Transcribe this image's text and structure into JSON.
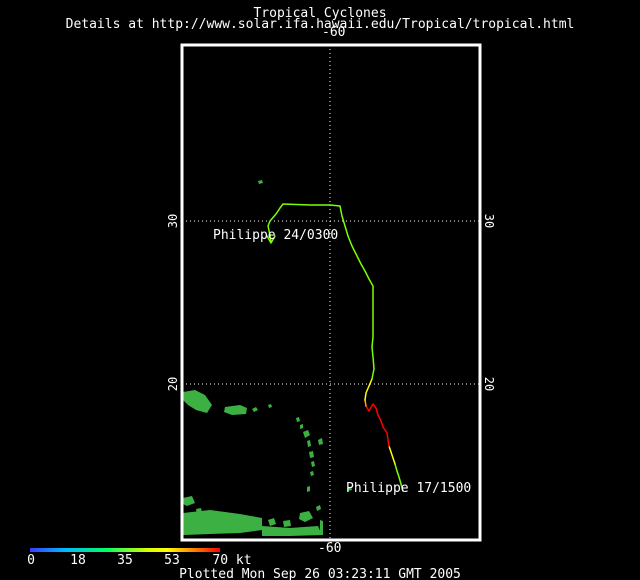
{
  "header": {
    "title": "Tropical Cyclones",
    "subtitle": "Details at http://www.solar.ifa.hawaii.edu/Tropical/tropical.html"
  },
  "map": {
    "longitude_label_top": "-60",
    "longitude_label_bottom": "-60",
    "latitude_labels": {
      "lat30_left": "30",
      "lat30_right": "30",
      "lat20_left": "20",
      "lat20_right": "20"
    },
    "track": {
      "storm_name": "Philippe",
      "start_label": "Philippe  17/1500",
      "end_label": "Philippe  24/0300"
    }
  },
  "legend": {
    "ticks": [
      "0",
      "18",
      "35",
      "53",
      "70 kt"
    ]
  },
  "footer": {
    "plotted": "Plotted Mon Sep 26 03:23:11 GMT 2005"
  },
  "colors": {
    "frame": "#ffffff",
    "land": "#3cb043",
    "grid": "#ffffff",
    "track_low": "#7cff00",
    "track_mid": "#ffff00",
    "track_high": "#ff0000"
  }
}
